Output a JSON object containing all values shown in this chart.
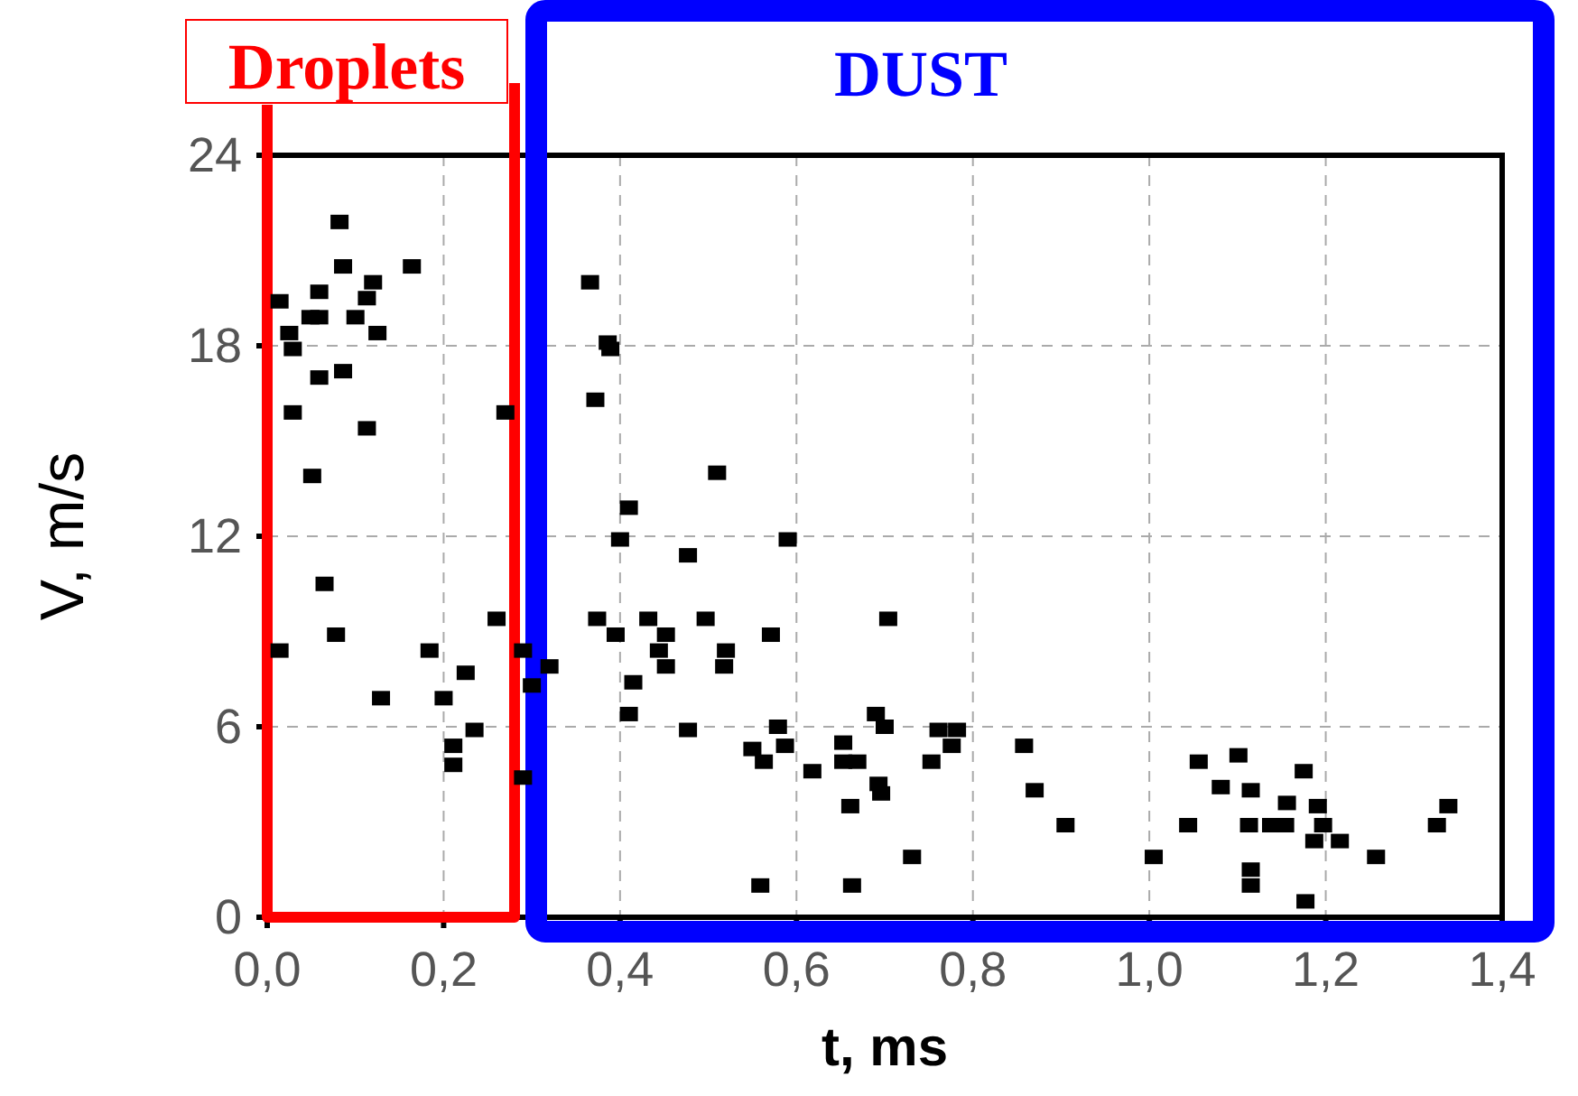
{
  "chart_data": {
    "type": "scatter",
    "xlabel": "t, ms",
    "ylabel": "V, m/s",
    "xlim": [
      0,
      1.4
    ],
    "ylim": [
      0,
      24
    ],
    "xticks": [
      {
        "value": 0,
        "label": "0,0"
      },
      {
        "value": 0.2,
        "label": "0,2"
      },
      {
        "value": 0.4,
        "label": "0,4"
      },
      {
        "value": 0.6,
        "label": "0,6"
      },
      {
        "value": 0.8,
        "label": "0,8"
      },
      {
        "value": 1.0,
        "label": "1,0"
      },
      {
        "value": 1.2,
        "label": "1,2"
      },
      {
        "value": 1.4,
        "label": "1,4"
      }
    ],
    "yticks": [
      0,
      6,
      12,
      18,
      24
    ],
    "grid": true,
    "marker": "square",
    "annotations": [
      "Droplets",
      "DUST"
    ],
    "series": [
      {
        "color": "#000000",
        "x": [
          0.082,
          0.086,
          0.164,
          0.12,
          0.113,
          0.059,
          0.014,
          0.049,
          0.059,
          0.1,
          0.125,
          0.025,
          0.029,
          0.086,
          0.059,
          0.029,
          0.113,
          0.27,
          0.051,
          0.065,
          0.26,
          0.078,
          0.014,
          0.184,
          0.225,
          0.129,
          0.2,
          0.235,
          0.211,
          0.211,
          0.29,
          0.29,
          0.32,
          0.3,
          0.366,
          0.386,
          0.389,
          0.372,
          0.51,
          0.41,
          0.4,
          0.59,
          0.477,
          0.374,
          0.432,
          0.497,
          0.395,
          0.452,
          0.571,
          0.444,
          0.52,
          0.452,
          0.518,
          0.415,
          0.41,
          0.477,
          0.579,
          0.55,
          0.563,
          0.587,
          0.559,
          0.704,
          0.69,
          0.7,
          0.653,
          0.653,
          0.669,
          0.618,
          0.693,
          0.696,
          0.661,
          0.731,
          0.663,
          0.761,
          0.782,
          0.776,
          0.753,
          0.858,
          0.87,
          0.905,
          1.005,
          1.044,
          1.056,
          1.101,
          1.081,
          1.115,
          1.113,
          1.115,
          1.115,
          1.138,
          1.154,
          1.156,
          1.175,
          1.191,
          1.197,
          1.187,
          1.216,
          1.177,
          1.257,
          1.326,
          1.339
        ],
        "values": [
          21.9,
          20.5,
          20.5,
          20.0,
          19.5,
          19.7,
          19.4,
          18.9,
          18.9,
          18.9,
          18.4,
          18.4,
          17.9,
          17.2,
          17.0,
          15.9,
          15.4,
          15.9,
          13.9,
          10.5,
          9.4,
          8.9,
          8.4,
          8.4,
          7.7,
          6.9,
          6.9,
          5.9,
          5.4,
          4.8,
          4.4,
          8.4,
          7.9,
          7.3,
          20.0,
          18.1,
          17.9,
          16.3,
          14.0,
          12.9,
          11.9,
          11.9,
          11.4,
          9.4,
          9.4,
          9.4,
          8.9,
          8.9,
          8.9,
          8.4,
          8.4,
          7.9,
          7.9,
          7.4,
          6.4,
          5.9,
          6.0,
          5.3,
          4.9,
          5.4,
          1.0,
          9.4,
          6.4,
          6.0,
          5.5,
          4.9,
          4.9,
          4.6,
          4.2,
          3.9,
          3.5,
          1.9,
          1.0,
          5.9,
          5.9,
          5.4,
          4.9,
          5.4,
          4.0,
          2.9,
          1.9,
          2.9,
          4.9,
          5.1,
          4.1,
          4.0,
          2.9,
          1.5,
          1.0,
          2.9,
          2.9,
          3.6,
          4.6,
          3.5,
          2.9,
          2.4,
          2.4,
          0.5,
          1.9,
          2.9,
          3.5
        ]
      }
    ]
  }
}
